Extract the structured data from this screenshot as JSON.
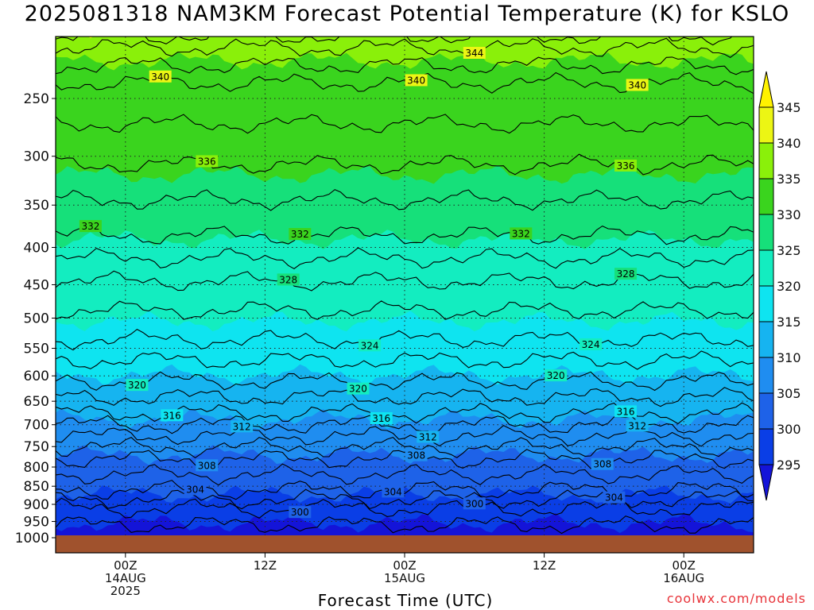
{
  "title": "2025081318 NAM3KM Forecast Potential Temperature (K) for KSLO",
  "credit": "coolwx.com/models",
  "chart_data": {
    "type": "contour",
    "title": "2025081318 NAM3KM Forecast Potential Temperature (K) for KSLO",
    "xlabel": "Forecast Time (UTC)",
    "ylabel": "",
    "variable": "Potential Temperature (K)",
    "y_ticks": [
      250,
      300,
      350,
      400,
      450,
      500,
      550,
      600,
      650,
      700,
      750,
      800,
      850,
      900,
      950,
      1000
    ],
    "y_scale": "log-pressure",
    "y_inverted": true,
    "x_ticks": [
      {
        "hour": 6,
        "label": "00Z",
        "label2": "14AUG",
        "label3": "2025"
      },
      {
        "hour": 18,
        "label": "12Z",
        "label2": "",
        "label3": ""
      },
      {
        "hour": 30,
        "label": "00Z",
        "label2": "15AUG",
        "label3": ""
      },
      {
        "hour": 42,
        "label": "12Z",
        "label2": "",
        "label3": ""
      },
      {
        "hour": 54,
        "label": "00Z",
        "label2": "16AUG",
        "label3": ""
      }
    ],
    "x_range_hours": [
      0,
      60
    ],
    "y_range_hpa": [
      200,
      1015
    ],
    "colorbar": {
      "levels": [
        295,
        300,
        305,
        310,
        315,
        320,
        325,
        330,
        335,
        340,
        345
      ],
      "colors": [
        "#1414d8",
        "#0a3ee6",
        "#1e62e8",
        "#1f8df0",
        "#16b4f0",
        "#0ee4f0",
        "#13edc0",
        "#16e07a",
        "#3ad41e",
        "#8af00a",
        "#ecf614",
        "#fff200"
      ]
    },
    "contours": [
      {
        "value": 344,
        "label": "344",
        "base_p": 213,
        "label_hour": 36
      },
      {
        "value": 340,
        "label": "340",
        "base_p": 238,
        "label_hour": 9
      },
      {
        "value": 340,
        "label": "340",
        "base_p": 238,
        "label_hour": 31
      },
      {
        "value": 340,
        "label": "340",
        "base_p": 238,
        "label_hour": 50
      },
      {
        "value": 336,
        "label": "336",
        "base_p": 308,
        "label_hour": 13
      },
      {
        "value": 336,
        "label": "336",
        "base_p": 308,
        "label_hour": 49
      },
      {
        "value": 332,
        "label": "332",
        "base_p": 385,
        "label_hour": 3
      },
      {
        "value": 332,
        "label": "332",
        "base_p": 385,
        "label_hour": 21
      },
      {
        "value": 332,
        "label": "332",
        "base_p": 385,
        "label_hour": 40
      },
      {
        "value": 328,
        "label": "328",
        "base_p": 445,
        "label_hour": 20
      },
      {
        "value": 328,
        "label": "328",
        "base_p": 445,
        "label_hour": 49
      },
      {
        "value": 324,
        "label": "324",
        "base_p": 535,
        "label_hour": 27
      },
      {
        "value": 324,
        "label": "324",
        "base_p": 535,
        "label_hour": 46
      },
      {
        "value": 320,
        "label": "320",
        "base_p": 610,
        "label_hour": 7
      },
      {
        "value": 320,
        "label": "320",
        "base_p": 610,
        "label_hour": 26
      },
      {
        "value": 320,
        "label": "320",
        "base_p": 610,
        "label_hour": 43
      },
      {
        "value": 316,
        "label": "316",
        "base_p": 675,
        "label_hour": 10
      },
      {
        "value": 316,
        "label": "316",
        "base_p": 675,
        "label_hour": 28
      },
      {
        "value": 316,
        "label": "316",
        "base_p": 675,
        "label_hour": 49
      },
      {
        "value": 312,
        "label": "312",
        "base_p": 725,
        "label_hour": 16
      },
      {
        "value": 312,
        "label": "312",
        "base_p": 725,
        "label_hour": 32
      },
      {
        "value": 312,
        "label": "312",
        "base_p": 725,
        "label_hour": 50
      },
      {
        "value": 308,
        "label": "308",
        "base_p": 780,
        "label_hour": 13
      },
      {
        "value": 308,
        "label": "308",
        "base_p": 780,
        "label_hour": 31
      },
      {
        "value": 308,
        "label": "308",
        "base_p": 780,
        "label_hour": 47
      },
      {
        "value": 304,
        "label": "304",
        "base_p": 860,
        "label_hour": 12
      },
      {
        "value": 304,
        "label": "304",
        "base_p": 860,
        "label_hour": 29
      },
      {
        "value": 304,
        "label": "304",
        "base_p": 860,
        "label_hour": 48
      },
      {
        "value": 300,
        "label": "300",
        "base_p": 912,
        "label_hour": 21
      },
      {
        "value": 300,
        "label": "300",
        "base_p": 912,
        "label_hour": 36
      }
    ],
    "ground_pressure_hpa": 1000
  }
}
